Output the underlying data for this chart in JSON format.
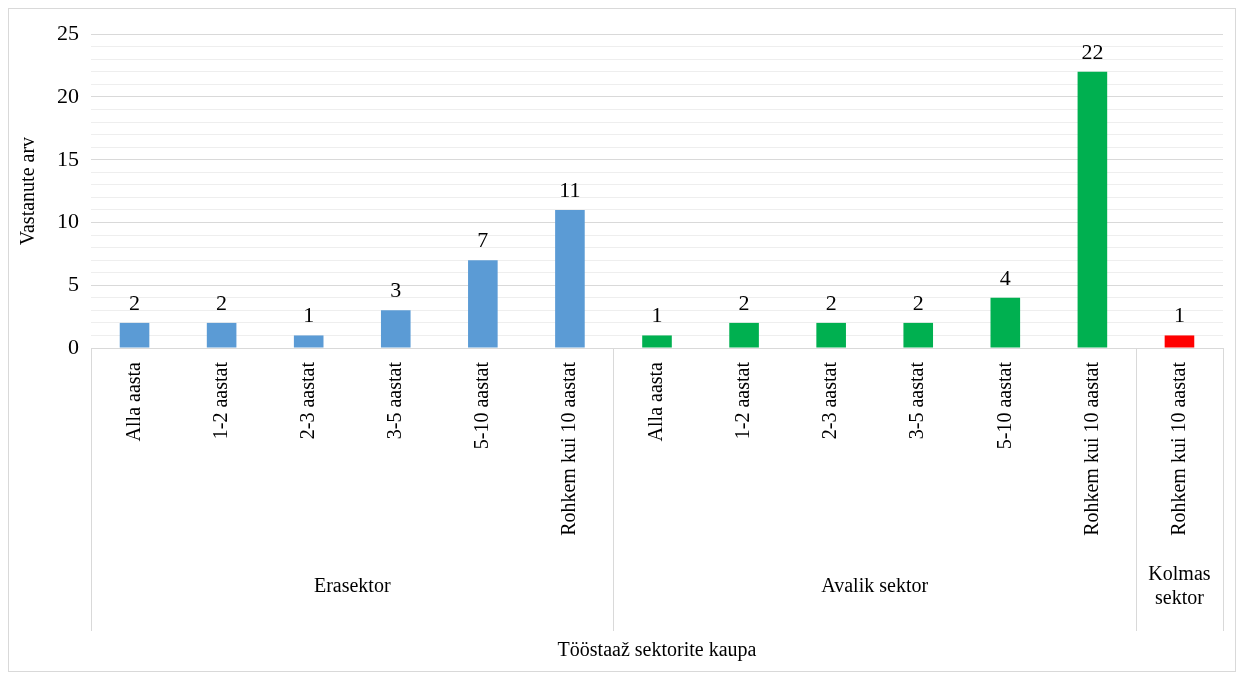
{
  "chart_data": {
    "type": "bar",
    "ylabel": "Vastanute arv",
    "categories": [
      "Alla aasta",
      "1-2 aastat",
      "2-3 aastat",
      "3-5 aastat",
      "5-10 aastat",
      "Rohkem kui 10 aastat",
      "Alla aasta",
      "1-2 aastat",
      "2-3 aastat",
      "3-5 aastat",
      "5-10 aastat",
      "Rohkem kui 10 aastat",
      "Rohkem kui 10 aastat"
    ],
    "series": [
      {
        "color": "#5b9bd5",
        "values": [
          2,
          2,
          1,
          3,
          7,
          11,
          null,
          null,
          null,
          null,
          null,
          null,
          null
        ]
      },
      {
        "color": "#00b050",
        "values": [
          null,
          null,
          null,
          null,
          null,
          null,
          1,
          2,
          2,
          2,
          4,
          22,
          null
        ]
      },
      {
        "color": "#ff0000",
        "values": [
          null,
          null,
          null,
          null,
          null,
          null,
          null,
          null,
          null,
          null,
          null,
          null,
          1
        ]
      }
    ],
    "ylim": [
      0,
      25
    ],
    "yticks": [
      0,
      {
        "value": 1,
        "label": null
      },
      {
        "value": 2,
        "label": null
      },
      {
        "value": 3,
        "label": null
      },
      {
        "value": 4,
        "label": null
      },
      5,
      {
        "value": 6,
        "label": null
      },
      {
        "value": 7,
        "label": null
      },
      {
        "value": 8,
        "label": null
      },
      {
        "value": 9,
        "label": null
      },
      10,
      {
        "value": 11,
        "label": null
      },
      {
        "value": 12,
        "label": null
      },
      {
        "value": 13,
        "label": null
      },
      {
        "value": 14,
        "label": null
      },
      15,
      {
        "value": 16,
        "label": null
      },
      {
        "value": 17,
        "label": null
      },
      {
        "value": 18,
        "label": null
      },
      {
        "value": 19,
        "label": null
      },
      20,
      {
        "value": 21,
        "label": null
      },
      {
        "value": 22,
        "label": null
      },
      {
        "value": 23,
        "label": null
      },
      {
        "value": 24,
        "label": null
      },
      25
    ],
    "annotations": [
      "Erasektor",
      "Avalik sektor",
      "Kolmas sektor",
      "Tööstaaž sektorite kaupa"
    ],
    "grid": "y",
    "data_labels": true
  }
}
